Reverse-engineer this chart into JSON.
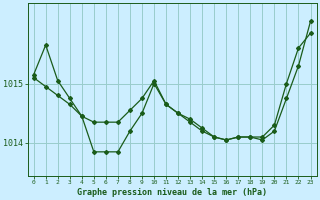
{
  "title": "Graphe pression niveau de la mer (hPa)",
  "bg_color": "#cceeff",
  "line_color": "#1a5c1a",
  "grid_color": "#99cccc",
  "x": [
    0,
    1,
    2,
    3,
    4,
    5,
    6,
    7,
    8,
    9,
    10,
    11,
    12,
    13,
    14,
    15,
    16,
    17,
    18,
    19,
    20,
    21,
    22,
    23
  ],
  "series1": [
    1015.15,
    1015.65,
    1015.05,
    1014.75,
    1014.45,
    1014.35,
    1014.35,
    1014.35,
    1014.55,
    1014.75,
    1015.05,
    1014.65,
    1014.5,
    1014.35,
    1014.2,
    1014.1,
    1014.05,
    1014.1,
    1014.1,
    1014.05,
    1014.2,
    1014.75,
    1015.3,
    1016.05
  ],
  "series2": [
    1015.1,
    1014.95,
    1014.8,
    1014.65,
    1014.45,
    1013.85,
    1013.85,
    1013.85,
    1014.2,
    1014.5,
    1015.0,
    1014.65,
    1014.5,
    1014.4,
    1014.25,
    1014.1,
    1014.05,
    1014.1,
    1014.1,
    1014.1,
    1014.3,
    1015.0,
    1015.6,
    1015.85
  ],
  "yticks": [
    1014.0,
    1015.0
  ],
  "ylim": [
    1013.45,
    1016.35
  ],
  "xlim": [
    -0.5,
    23.5
  ]
}
